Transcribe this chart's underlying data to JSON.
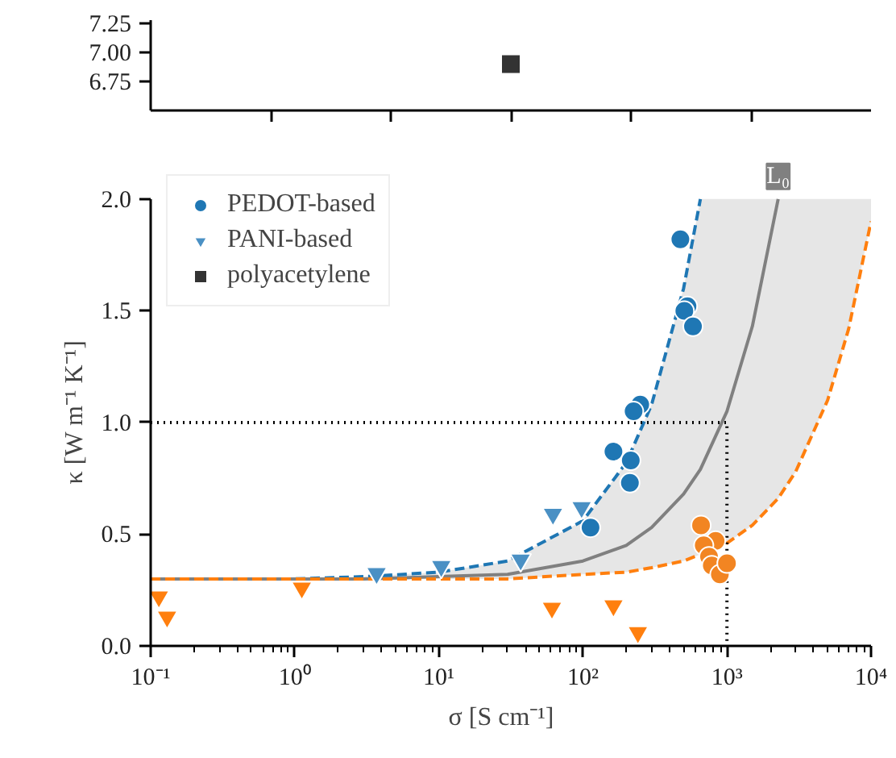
{
  "chart_data": [
    {
      "type": "scatter",
      "categories": [
        null
      ],
      "ylim": [
        6.5,
        7.28
      ],
      "yticks": [
        {
          "value": 6.75,
          "label": "6.75"
        },
        {
          "value": 7.0,
          "label": "7.00"
        },
        {
          "value": 7.25,
          "label": "7.25"
        }
      ],
      "tick_labels": "y",
      "grid": false,
      "series": [
        {
          "name": "polyacetylene",
          "marker": "square",
          "color": "#333333",
          "values": [
            6.9
          ]
        }
      ]
    },
    {
      "type": "scatter",
      "xlabel": "σ    [S cm⁻¹]",
      "ylabel": "κ    [W m⁻¹ K⁻¹]",
      "log": "x",
      "xlim": [
        0.1,
        10000
      ],
      "xticks": [
        {
          "value": 0.1,
          "label": "10⁻¹"
        },
        {
          "value": 1,
          "label": "10⁰"
        },
        {
          "value": 10,
          "label": "10¹"
        },
        {
          "value": 100,
          "label": "10²"
        },
        {
          "value": 1000,
          "label": "10³"
        },
        {
          "value": 10000,
          "label": "10⁴"
        }
      ],
      "ylim": [
        0,
        2.0
      ],
      "yticks": [
        {
          "value": 0,
          "label": "0.0"
        },
        {
          "value": 0.5,
          "label": "0.5"
        },
        {
          "value": 1,
          "label": "1.0"
        },
        {
          "value": 1.5,
          "label": "1.5"
        },
        {
          "value": 2,
          "label": "2.0"
        }
      ],
      "grid": false,
      "legend": "top left",
      "annotations": [
        {
          "text": "L₀",
          "x": 2267,
          "y": 2.0
        }
      ],
      "series": [
        {
          "type": "line",
          "line_style": "solid",
          "color": "#808080",
          "x": [
            0.1,
            1,
            3,
            10,
            30,
            100,
            200,
            300,
            500,
            654,
            1000,
            1500,
            2267,
            3000,
            5000,
            7000,
            10000
          ],
          "values": [
            0.3,
            0.3,
            0.3,
            0.31,
            0.32,
            0.38,
            0.45,
            0.53,
            0.68,
            0.79,
            1.05,
            1.43,
            2.0,
            null,
            null,
            null,
            null
          ],
          "lower": [
            0.3,
            0.3,
            0.3,
            0.3,
            0.3,
            0.32,
            0.33,
            0.35,
            0.38,
            0.41,
            0.46,
            0.54,
            0.66,
            0.78,
            1.1,
            1.42,
            1.9
          ],
          "upper": [
            0.3,
            0.3,
            0.31,
            0.33,
            0.38,
            0.56,
            0.82,
            1.08,
            1.6,
            2.0,
            2.0,
            2.0,
            2.0,
            2.0,
            2.0,
            2.0,
            2.0
          ]
        },
        {
          "type": "line",
          "line_style": "dashed",
          "color": "#1f77b4",
          "x": [
            0.1,
            1,
            3,
            10,
            30,
            100,
            200,
            300,
            500,
            654
          ],
          "values": [
            0.3,
            0.3,
            0.31,
            0.33,
            0.38,
            0.56,
            0.82,
            1.08,
            1.6,
            2.0
          ]
        },
        {
          "type": "line",
          "line_style": "dashed",
          "color": "#ff7f0e",
          "x": [
            0.1,
            1,
            3,
            10,
            30,
            100,
            200,
            300,
            500,
            654,
            1000,
            1500,
            2267,
            3000,
            5000,
            7000,
            10000
          ],
          "values": [
            0.3,
            0.3,
            0.3,
            0.3,
            0.3,
            0.32,
            0.33,
            0.35,
            0.38,
            0.41,
            0.46,
            0.54,
            0.66,
            0.78,
            1.1,
            1.42,
            1.9
          ]
        },
        {
          "type": "line",
          "line_style": "dotted",
          "color": "#000000",
          "x": [
            0.1,
            1000,
            1000
          ],
          "values": [
            1,
            1,
            0
          ]
        },
        {
          "name": "PEDOT-based",
          "marker": "circle",
          "color": "#1f77b4",
          "x": [
            475,
            532,
            506,
            581,
            250,
            225,
            163,
            215,
            212,
            113
          ],
          "values": [
            1.82,
            1.52,
            1.5,
            1.43,
            1.08,
            1.05,
            0.87,
            0.83,
            0.73,
            0.53
          ]
        },
        {
          "marker": "circle",
          "color": "#f28522",
          "x": [
            661,
            834,
            690,
            751,
            785,
            893,
            1000
          ],
          "values": [
            0.54,
            0.47,
            0.45,
            0.4,
            0.36,
            0.32,
            0.37
          ]
        },
        {
          "name": "PANI-based",
          "marker": "triangle",
          "color": "#4a90c4",
          "x": [
            62,
            98,
            37,
            3.7,
            10.4
          ],
          "values": [
            0.59,
            0.62,
            0.385,
            0.325,
            0.356
          ]
        },
        {
          "marker": "triangle",
          "color": "#ff7f0e",
          "x": [
            0.114,
            0.13,
            1.12,
            61,
            163,
            241
          ],
          "values": [
            0.22,
            0.13,
            0.26,
            0.17,
            0.18,
            0.06
          ]
        }
      ]
    }
  ]
}
